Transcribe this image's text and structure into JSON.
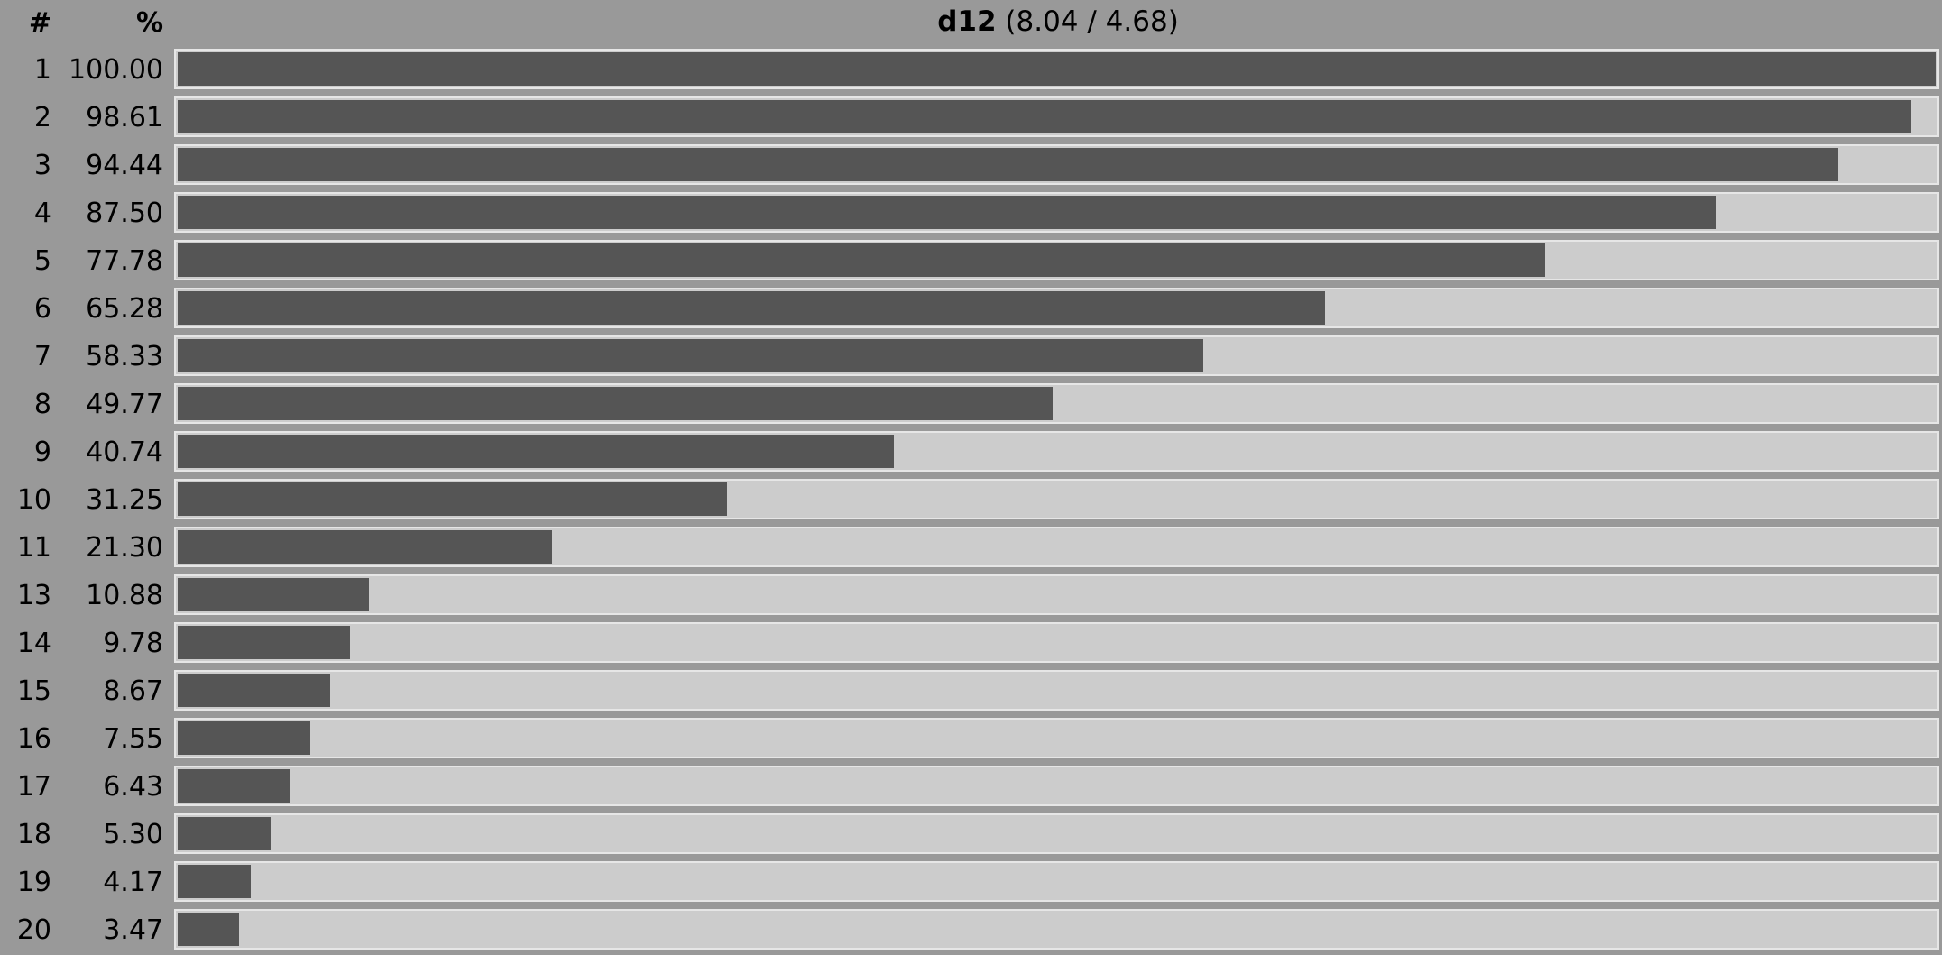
{
  "chart_data": {
    "type": "bar",
    "orientation": "horizontal",
    "title_bold": "d12",
    "title_rest": " (8.04 / 4.68)",
    "column_headers": {
      "rank": "#",
      "percent": "%"
    },
    "xlim": [
      0,
      100
    ],
    "colors": {
      "bar": "#555555",
      "track": "#cccccc",
      "background": "#999999"
    },
    "rows": [
      {
        "rank": "1",
        "value": 100.0,
        "label": "100.00"
      },
      {
        "rank": "2",
        "value": 98.61,
        "label": "98.61"
      },
      {
        "rank": "3",
        "value": 94.44,
        "label": "94.44"
      },
      {
        "rank": "4",
        "value": 87.5,
        "label": "87.50"
      },
      {
        "rank": "5",
        "value": 77.78,
        "label": "77.78"
      },
      {
        "rank": "6",
        "value": 65.28,
        "label": "65.28"
      },
      {
        "rank": "7",
        "value": 58.33,
        "label": "58.33"
      },
      {
        "rank": "8",
        "value": 49.77,
        "label": "49.77"
      },
      {
        "rank": "9",
        "value": 40.74,
        "label": "40.74"
      },
      {
        "rank": "10",
        "value": 31.25,
        "label": "31.25"
      },
      {
        "rank": "11",
        "value": 21.3,
        "label": "21.30"
      },
      {
        "rank": "13",
        "value": 10.88,
        "label": "10.88"
      },
      {
        "rank": "14",
        "value": 9.78,
        "label": "9.78"
      },
      {
        "rank": "15",
        "value": 8.67,
        "label": "8.67"
      },
      {
        "rank": "16",
        "value": 7.55,
        "label": "7.55"
      },
      {
        "rank": "17",
        "value": 6.43,
        "label": "6.43"
      },
      {
        "rank": "18",
        "value": 5.3,
        "label": "5.30"
      },
      {
        "rank": "19",
        "value": 4.17,
        "label": "4.17"
      },
      {
        "rank": "20",
        "value": 3.47,
        "label": "3.47"
      }
    ]
  }
}
